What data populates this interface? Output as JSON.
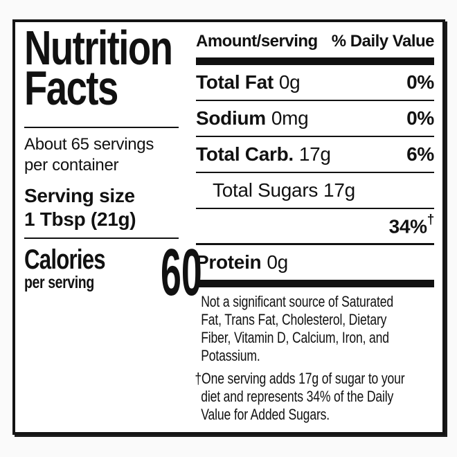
{
  "colors": {
    "ink": "#111111",
    "label_background": "#ffffff",
    "page_background": "#fafafa"
  },
  "label": {
    "title_line1": "Nutrition",
    "title_line2": "Facts",
    "servings_line1": "About 65 servings",
    "servings_line2": "per container",
    "serving_size_label": "Serving size",
    "serving_size_value": "1 Tbsp (21g)",
    "calories_label": "Calories",
    "calories_sub": "per serving",
    "calories_value": "60",
    "header": {
      "amount": "Amount/serving",
      "daily_value": "% Daily Value"
    },
    "rows": [
      {
        "name": "Total Fat",
        "amount": "0g",
        "daily_value": "0%"
      },
      {
        "name": "Sodium",
        "amount": "0mg",
        "daily_value": "0%"
      },
      {
        "name": "Total Carb.",
        "amount": "17g",
        "daily_value": "6%"
      },
      {
        "name": "Total Sugars",
        "amount": "17g",
        "daily_value": ""
      },
      {
        "name": "",
        "amount": "",
        "daily_value": "34%",
        "daily_value_sup": "†"
      },
      {
        "name": "Protein",
        "amount": "0g",
        "daily_value": ""
      }
    ],
    "footnote_not_significant": {
      "lines": [
        "Not a significant source of Saturated",
        "Fat, Trans Fat, Cholesterol, Dietary",
        "Fiber, Vitamin D, Calcium, Iron, and",
        "Potassium."
      ]
    },
    "footnote_added_sugars": {
      "dagger": "†",
      "lines": [
        "One serving adds 17g of sugar to your",
        "diet and represents 34% of the Daily",
        "Value for Added Sugars."
      ]
    }
  }
}
